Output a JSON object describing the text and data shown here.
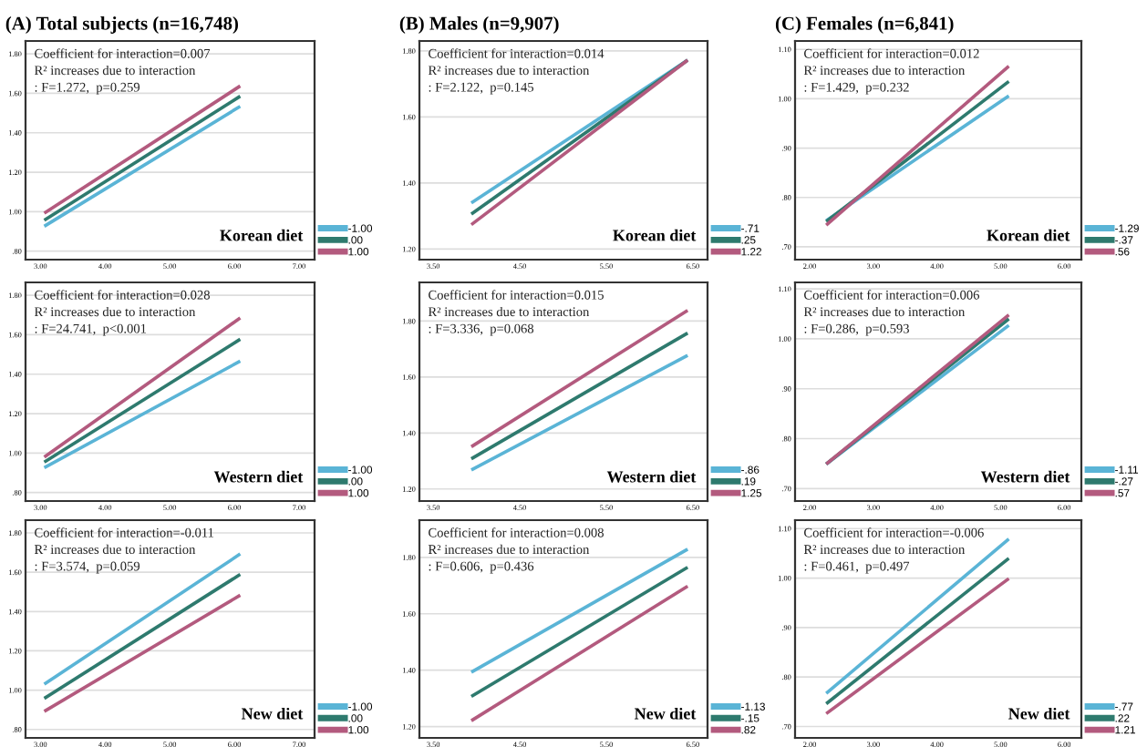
{
  "chart_data": [
    {
      "type": "line",
      "title": "(A) Total subjects (n=16,748)",
      "x": [
        3.06,
        6.09
      ],
      "xlim": [
        2.77,
        7.24
      ],
      "xticks": [
        {
          "value": 3,
          "label": "3.00"
        },
        {
          "value": 4,
          "label": "4.00"
        },
        {
          "value": 5,
          "label": "5.00"
        },
        {
          "value": 6,
          "label": "6.00"
        },
        {
          "value": 7,
          "label": "7.00"
        }
      ],
      "ylim": [
        0.757,
        1.865
      ],
      "yticks": [
        {
          "value": 0.8,
          "label": ".80"
        },
        {
          "value": 1.0,
          "label": "1.00"
        },
        {
          "value": 1.2,
          "label": "1.20"
        },
        {
          "value": 1.4,
          "label": "1.40"
        },
        {
          "value": 1.6,
          "label": "1.60"
        },
        {
          "value": 1.8,
          "label": "1.80"
        }
      ],
      "grid": "y",
      "legend": "right",
      "annotations": [
        "Coefficient for interaction=0.007",
        "R² increases due to interaction",
        ": F=1.272,  p=0.259",
        "Korean diet"
      ],
      "series": [
        {
          "name": "-1.00",
          "color": "#5ab4d6",
          "values": [
            0.926,
            1.534
          ]
        },
        {
          "name": ".00",
          "color": "#2e7a6e",
          "values": [
            0.957,
            1.585
          ]
        },
        {
          "name": "1.00",
          "color": "#b35a7e",
          "values": [
            0.992,
            1.637
          ]
        }
      ]
    },
    {
      "type": "line",
      "title": "(B) Males (n=9,907)",
      "x": [
        3.94,
        6.44
      ],
      "xlim": [
        3.34,
        6.67
      ],
      "xticks": [
        {
          "value": 3.5,
          "label": "3.50"
        },
        {
          "value": 4.5,
          "label": "4.50"
        },
        {
          "value": 5.5,
          "label": "5.50"
        },
        {
          "value": 6.5,
          "label": "6.50"
        }
      ],
      "ylim": [
        1.168,
        1.83
      ],
      "yticks": [
        {
          "value": 1.2,
          "label": "1.20"
        },
        {
          "value": 1.4,
          "label": "1.40"
        },
        {
          "value": 1.6,
          "label": "1.60"
        },
        {
          "value": 1.8,
          "label": "1.80"
        }
      ],
      "grid": "y",
      "legend": "right",
      "annotations": [
        "Coefficient for interaction=0.014",
        "R² increases due to interaction",
        ": F=2.122,  p=0.145",
        "Korean diet"
      ],
      "series": [
        {
          "name": "-.71",
          "color": "#5ab4d6",
          "values": [
            1.34,
            1.772
          ]
        },
        {
          "name": ".25",
          "color": "#2e7a6e",
          "values": [
            1.306,
            1.772
          ]
        },
        {
          "name": "1.22",
          "color": "#b35a7e",
          "values": [
            1.274,
            1.772
          ]
        }
      ]
    },
    {
      "type": "line",
      "title": "(C) Females (n=6,841)",
      "x": [
        2.26,
        5.13
      ],
      "xlim": [
        1.77,
        6.27
      ],
      "xticks": [
        {
          "value": 2,
          "label": "2.00"
        },
        {
          "value": 3,
          "label": "3.00"
        },
        {
          "value": 4,
          "label": "4.00"
        },
        {
          "value": 5,
          "label": "5.00"
        },
        {
          "value": 6,
          "label": "6.00"
        }
      ],
      "ylim": [
        0.674,
        1.117
      ],
      "yticks": [
        {
          "value": 0.7,
          "label": ".70"
        },
        {
          "value": 0.8,
          "label": ".80"
        },
        {
          "value": 0.9,
          "label": ".90"
        },
        {
          "value": 1.0,
          "label": "1.00"
        },
        {
          "value": 1.1,
          "label": "1.10"
        }
      ],
      "grid": "y",
      "legend": "right",
      "annotations": [
        "Coefficient for interaction=0.012",
        "R² increases due to interaction",
        ": F=1.429,  p=0.232",
        "Korean diet"
      ],
      "series": [
        {
          "name": "-1.29",
          "color": "#5ab4d6",
          "values": [
            0.753,
            1.006
          ]
        },
        {
          "name": "-.37",
          "color": "#2e7a6e",
          "values": [
            0.751,
            1.035
          ]
        },
        {
          "name": ".56",
          "color": "#b35a7e",
          "values": [
            0.744,
            1.066
          ]
        }
      ]
    },
    {
      "type": "line",
      "x": [
        3.06,
        6.09
      ],
      "xlim": [
        2.77,
        7.24
      ],
      "xticks": [
        {
          "value": 3,
          "label": "3.00"
        },
        {
          "value": 4,
          "label": "4.00"
        },
        {
          "value": 5,
          "label": "5.00"
        },
        {
          "value": 6,
          "label": "6.00"
        },
        {
          "value": 7,
          "label": "7.00"
        }
      ],
      "ylim": [
        0.757,
        1.865
      ],
      "yticks": [
        {
          "value": 0.8,
          "label": ".80"
        },
        {
          "value": 1.0,
          "label": "1.00"
        },
        {
          "value": 1.2,
          "label": "1.20"
        },
        {
          "value": 1.4,
          "label": "1.40"
        },
        {
          "value": 1.6,
          "label": "1.60"
        },
        {
          "value": 1.8,
          "label": "1.80"
        }
      ],
      "grid": "y",
      "legend": "right",
      "annotations": [
        "Coefficient for interaction=0.028",
        "R² increases due to interaction",
        ": F=24.741,  p<0.001",
        "Western diet"
      ],
      "series": [
        {
          "name": "-1.00",
          "color": "#5ab4d6",
          "values": [
            0.926,
            1.466
          ]
        },
        {
          "name": ".00",
          "color": "#2e7a6e",
          "values": [
            0.954,
            1.577
          ]
        },
        {
          "name": "1.00",
          "color": "#b35a7e",
          "values": [
            0.98,
            1.685
          ]
        }
      ]
    },
    {
      "type": "line",
      "x": [
        3.94,
        6.44
      ],
      "xlim": [
        3.34,
        6.67
      ],
      "xticks": [
        {
          "value": 3.5,
          "label": "3.50"
        },
        {
          "value": 4.5,
          "label": "4.50"
        },
        {
          "value": 5.5,
          "label": "5.50"
        },
        {
          "value": 6.5,
          "label": "6.50"
        }
      ],
      "ylim": [
        1.157,
        1.938
      ],
      "yticks": [
        {
          "value": 1.2,
          "label": "1.20"
        },
        {
          "value": 1.4,
          "label": "1.40"
        },
        {
          "value": 1.6,
          "label": "1.60"
        },
        {
          "value": 1.8,
          "label": "1.80"
        }
      ],
      "grid": "y",
      "legend": "right",
      "annotations": [
        "Coefficient for interaction=0.015",
        "R² increases due to interaction",
        ": F=3.336,  p=0.068",
        "Western diet"
      ],
      "series": [
        {
          "name": "-.86",
          "color": "#5ab4d6",
          "values": [
            1.268,
            1.677
          ]
        },
        {
          "name": ".19",
          "color": "#2e7a6e",
          "values": [
            1.308,
            1.757
          ]
        },
        {
          "name": "1.25",
          "color": "#b35a7e",
          "values": [
            1.351,
            1.838
          ]
        }
      ]
    },
    {
      "type": "line",
      "x": [
        2.26,
        5.13
      ],
      "xlim": [
        1.77,
        6.27
      ],
      "xticks": [
        {
          "value": 2,
          "label": "2.00"
        },
        {
          "value": 3,
          "label": "3.00"
        },
        {
          "value": 4,
          "label": "4.00"
        },
        {
          "value": 5,
          "label": "5.00"
        },
        {
          "value": 6,
          "label": "6.00"
        }
      ],
      "ylim": [
        0.675,
        1.113
      ],
      "yticks": [
        {
          "value": 0.7,
          "label": ".70"
        },
        {
          "value": 0.8,
          "label": ".80"
        },
        {
          "value": 0.9,
          "label": ".90"
        },
        {
          "value": 1.0,
          "label": "1.00"
        },
        {
          "value": 1.1,
          "label": "1.10"
        }
      ],
      "grid": "y",
      "legend": "right",
      "annotations": [
        "Coefficient for interaction=0.006",
        "R² increases due to interaction",
        ": F=0.286,  p=0.593",
        "Western diet"
      ],
      "series": [
        {
          "name": "-1.11",
          "color": "#5ab4d6",
          "values": [
            0.749,
            1.027
          ]
        },
        {
          "name": "-.27",
          "color": "#2e7a6e",
          "values": [
            0.749,
            1.04
          ]
        },
        {
          "name": ".57",
          "color": "#b35a7e",
          "values": [
            0.749,
            1.048
          ]
        }
      ]
    },
    {
      "type": "line",
      "x": [
        3.06,
        6.09
      ],
      "xlim": [
        2.77,
        7.24
      ],
      "xticks": [
        {
          "value": 3,
          "label": "3.00"
        },
        {
          "value": 4,
          "label": "4.00"
        },
        {
          "value": 5,
          "label": "5.00"
        },
        {
          "value": 6,
          "label": "6.00"
        },
        {
          "value": 7,
          "label": "7.00"
        }
      ],
      "ylim": [
        0.757,
        1.865
      ],
      "yticks": [
        {
          "value": 0.8,
          "label": ".80"
        },
        {
          "value": 1.0,
          "label": "1.00"
        },
        {
          "value": 1.2,
          "label": "1.20"
        },
        {
          "value": 1.4,
          "label": "1.40"
        },
        {
          "value": 1.6,
          "label": "1.60"
        },
        {
          "value": 1.8,
          "label": "1.80"
        }
      ],
      "grid": "y",
      "legend": "right",
      "annotations": [
        "Coefficient for interaction=-0.011",
        "R² increases due to interaction",
        ": F=3.574,  p=0.059",
        "New diet"
      ],
      "series": [
        {
          "name": "-1.00",
          "color": "#5ab4d6",
          "values": [
            1.03,
            1.693
          ]
        },
        {
          "name": ".00",
          "color": "#2e7a6e",
          "values": [
            0.958,
            1.589
          ]
        },
        {
          "name": "1.00",
          "color": "#b35a7e",
          "values": [
            0.892,
            1.483
          ]
        }
      ]
    },
    {
      "type": "line",
      "x": [
        3.94,
        6.44
      ],
      "xlim": [
        3.34,
        6.67
      ],
      "xticks": [
        {
          "value": 3.5,
          "label": "3.50"
        },
        {
          "value": 4.5,
          "label": "4.50"
        },
        {
          "value": 5.5,
          "label": "5.50"
        },
        {
          "value": 6.5,
          "label": "6.50"
        }
      ],
      "ylim": [
        1.16,
        1.932
      ],
      "yticks": [
        {
          "value": 1.2,
          "label": "1.20"
        },
        {
          "value": 1.4,
          "label": "1.40"
        },
        {
          "value": 1.6,
          "label": "1.60"
        },
        {
          "value": 1.8,
          "label": "1.80"
        }
      ],
      "grid": "y",
      "legend": "right",
      "annotations": [
        "Coefficient for interaction=0.008",
        "R² increases due to interaction",
        ": F=0.606,  p=0.436",
        "New diet"
      ],
      "series": [
        {
          "name": "-1.13",
          "color": "#5ab4d6",
          "values": [
            1.393,
            1.829
          ]
        },
        {
          "name": "-.15",
          "color": "#2e7a6e",
          "values": [
            1.307,
            1.765
          ]
        },
        {
          "name": ".82",
          "color": "#b35a7e",
          "values": [
            1.221,
            1.698
          ]
        }
      ]
    },
    {
      "type": "line",
      "x": [
        2.26,
        5.13
      ],
      "xlim": [
        1.77,
        6.27
      ],
      "xticks": [
        {
          "value": 2,
          "label": "2.00"
        },
        {
          "value": 3,
          "label": "3.00"
        },
        {
          "value": 4,
          "label": "4.00"
        },
        {
          "value": 5,
          "label": "5.00"
        },
        {
          "value": 6,
          "label": "6.00"
        }
      ],
      "ylim": [
        0.677,
        1.117
      ],
      "yticks": [
        {
          "value": 0.7,
          "label": ".70"
        },
        {
          "value": 0.8,
          "label": ".80"
        },
        {
          "value": 0.9,
          "label": ".90"
        },
        {
          "value": 1.0,
          "label": "1.00"
        },
        {
          "value": 1.1,
          "label": "1.10"
        }
      ],
      "grid": "y",
      "legend": "right",
      "annotations": [
        "Coefficient for interaction=-0.006",
        "R² increases due to interaction",
        ": F=0.461,  p=0.497",
        "New diet"
      ],
      "series": [
        {
          "name": "-.77",
          "color": "#5ab4d6",
          "values": [
            0.767,
            1.079
          ]
        },
        {
          "name": ".22",
          "color": "#2e7a6e",
          "values": [
            0.746,
            1.04
          ]
        },
        {
          "name": "1.21",
          "color": "#b35a7e",
          "values": [
            0.726,
            0.999
          ]
        }
      ]
    }
  ]
}
